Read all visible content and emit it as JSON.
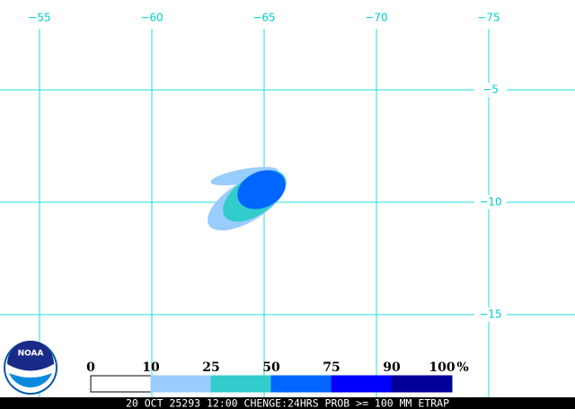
{
  "map": {
    "longitude_labels": [
      "−55",
      "−60",
      "−65",
      "−70",
      "−75"
    ],
    "latitude_labels": [
      "−5",
      "−10",
      "−15"
    ],
    "grid_color": "#22dede"
  },
  "legend": {
    "labels": [
      "0",
      "10",
      "25",
      "50",
      "75",
      "90",
      "100"
    ],
    "unit": "%",
    "colors": [
      "#ffffff",
      "#99ccff",
      "#33cccc",
      "#0066ff",
      "#0000ff",
      "#000099"
    ]
  },
  "logo": "NOAA",
  "footer": "20 OCT 25293 12:00 CHENGE:24HRS PROB >= 100 MM ETRAP"
}
